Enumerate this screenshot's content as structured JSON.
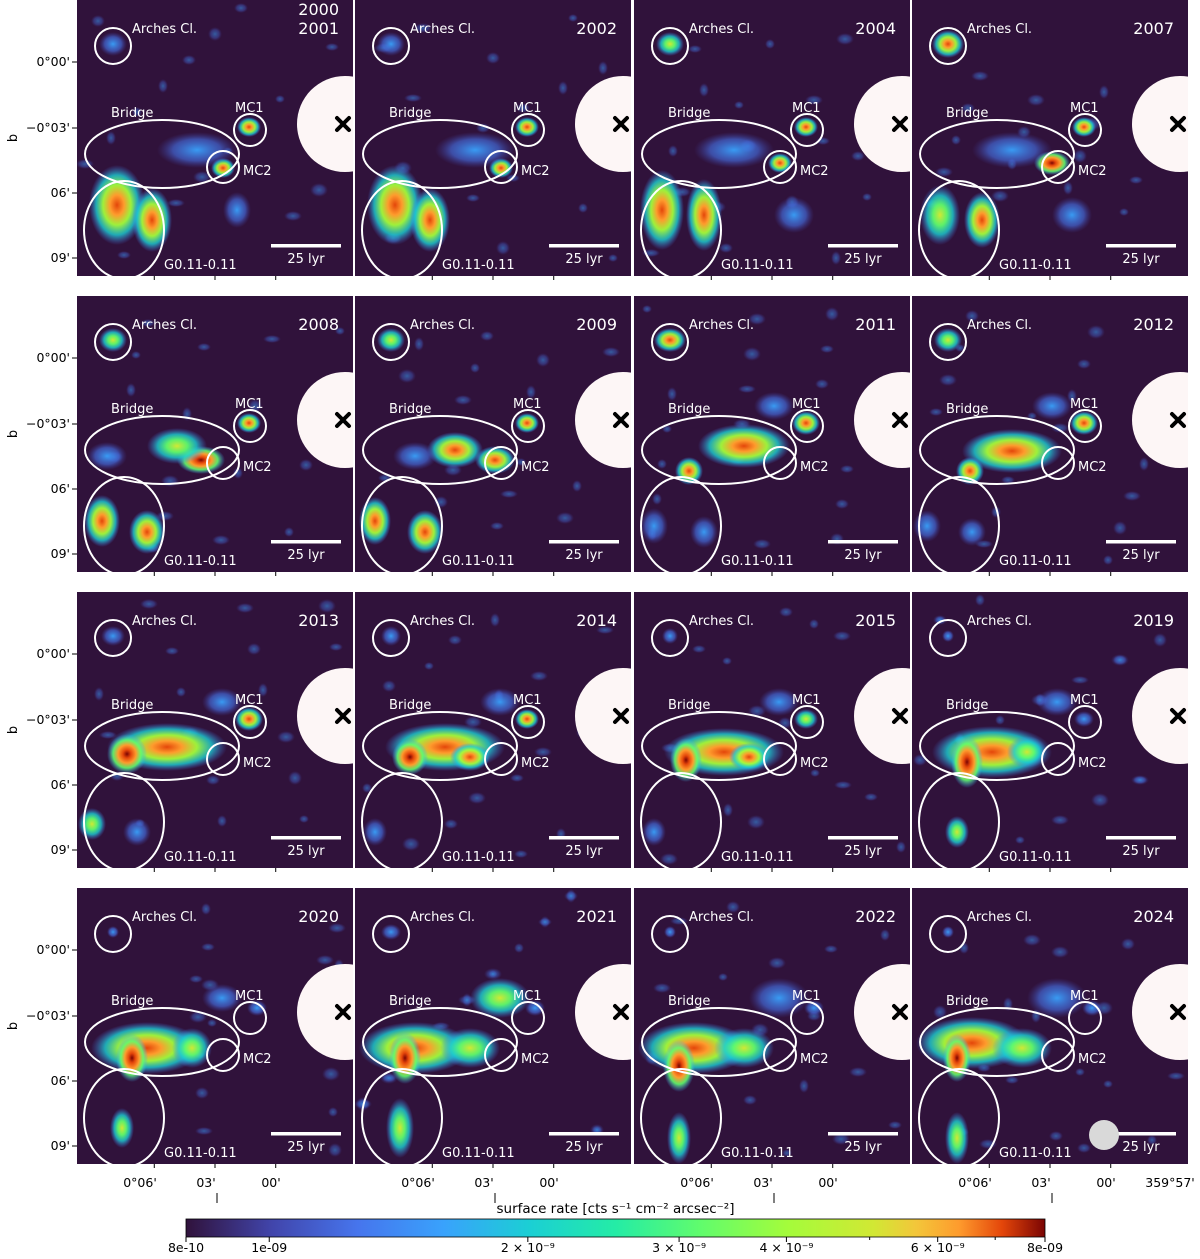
{
  "figure": {
    "panels": [
      {
        "year_top": "2000",
        "year": "2001"
      },
      {
        "year": "2002"
      },
      {
        "year": "2004"
      },
      {
        "year": "2007"
      },
      {
        "year": "2008"
      },
      {
        "year": "2009"
      },
      {
        "year": "2011"
      },
      {
        "year": "2012"
      },
      {
        "year": "2013"
      },
      {
        "year": "2014"
      },
      {
        "year": "2015"
      },
      {
        "year": "2019"
      },
      {
        "year": "2020"
      },
      {
        "year": "2021"
      },
      {
        "year": "2022"
      },
      {
        "year": "2024"
      }
    ],
    "region_labels": {
      "arches": "Arches Cl.",
      "bridge": "Bridge",
      "mc1": "MC1",
      "mc2": "MC2",
      "g011": "G0.11-0.11"
    },
    "scale_bar_label": "25 lyr",
    "y_axis_label": "b",
    "y_ticks": [
      "0°00'",
      "−0°03'",
      "06'",
      "09'"
    ],
    "x_ticks": [
      "0°06'",
      "03'",
      "00'",
      "359°57'"
    ],
    "colorbar": {
      "label": "surface rate [cts s⁻¹ cm⁻² arcsec⁻²]",
      "ticks": [
        {
          "value": 8e-10,
          "label": "8e-10"
        },
        {
          "value": 1e-09,
          "label": "1e-09"
        },
        {
          "value": 2e-09,
          "label": "2 × 10⁻⁹"
        },
        {
          "value": 3e-09,
          "label": "3 × 10⁻⁹"
        },
        {
          "value": 4e-09,
          "label": "4 × 10⁻⁹"
        },
        {
          "value": 6e-09,
          "label": "6 × 10⁻⁹"
        },
        {
          "value": 8e-09,
          "label": "8e-09"
        }
      ],
      "scale": "log",
      "colormap": "turbo",
      "background_color": "#30123b"
    },
    "colors": {
      "panel_background": "#30123b",
      "overlay": "#ffffff",
      "masked_region": "#fdf6f6",
      "marker": "#000000"
    }
  }
}
